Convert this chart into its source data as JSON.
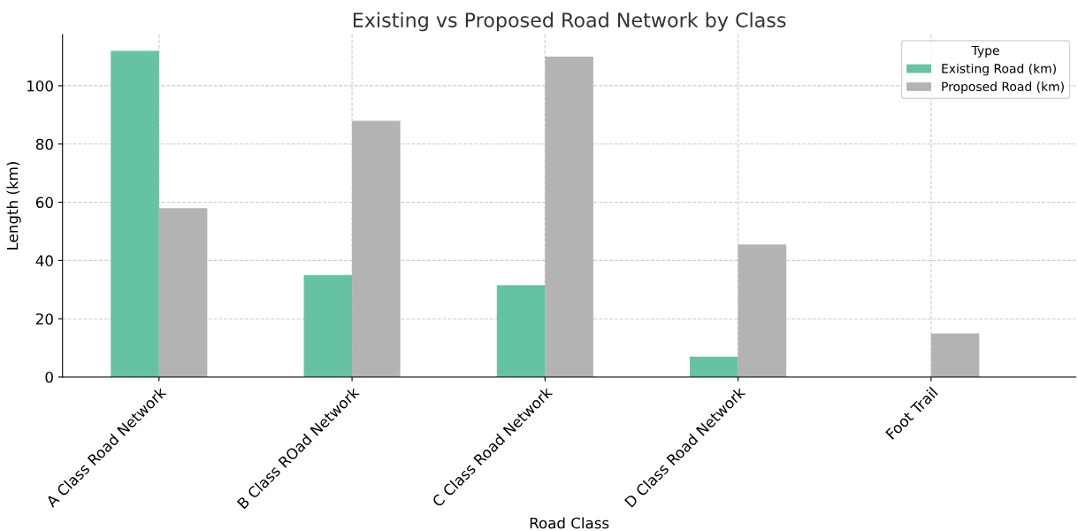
{
  "chart_data": {
    "type": "bar",
    "title": "Existing vs Proposed Road Network by Class",
    "xlabel": "Road Class",
    "ylabel": "Length (km)",
    "legend_title": "Type",
    "categories": [
      "A Class Road Network",
      "B Class ROad Network",
      "C Class Road Network",
      "D Class Road Network",
      "Foot Trail"
    ],
    "series": [
      {
        "name": "Existing Road (km)",
        "color": "#66c2a5",
        "values": [
          112,
          35,
          31.5,
          7,
          0
        ]
      },
      {
        "name": "Proposed Road (km)",
        "color": "#b3b3b3",
        "values": [
          58,
          88,
          110,
          45.5,
          15
        ]
      }
    ],
    "ylim": [
      0,
      117.6
    ],
    "yticks": [
      0,
      20,
      40,
      60,
      80,
      100
    ],
    "grid": true,
    "legend": "top right"
  }
}
